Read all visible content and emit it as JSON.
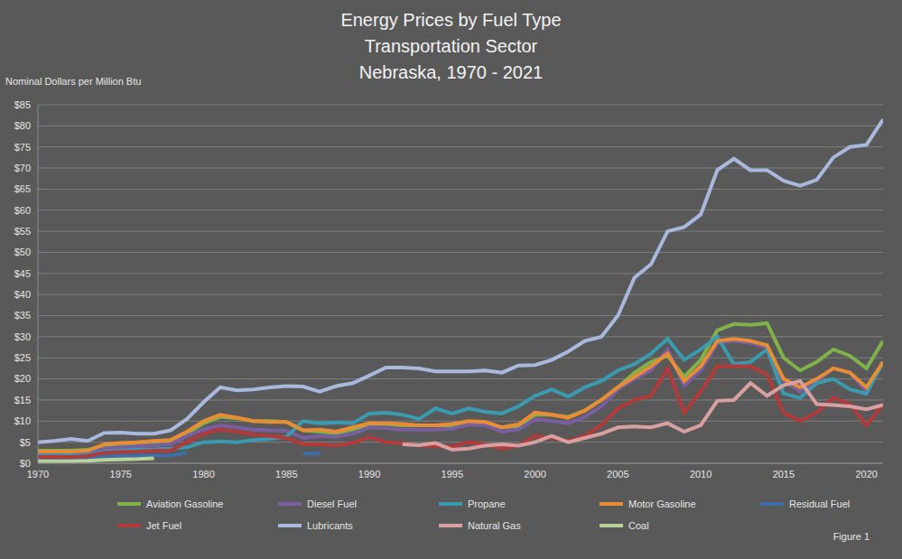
{
  "chart_data": {
    "type": "line",
    "title": [
      "Energy Prices by Fuel Type",
      "Transportation Sector",
      "Nebraska, 1970 - 2021"
    ],
    "y_label": "Nominal Dollars per Million Btu",
    "annotations": [
      "Figure 1"
    ],
    "grid": true,
    "legend": "bottom",
    "x": [
      1970,
      1971,
      1972,
      1973,
      1974,
      1975,
      1976,
      1977,
      1978,
      1979,
      1980,
      1981,
      1982,
      1983,
      1984,
      1985,
      1986,
      1987,
      1988,
      1989,
      1990,
      1991,
      1992,
      1993,
      1994,
      1995,
      1996,
      1997,
      1998,
      1999,
      2000,
      2001,
      2002,
      2003,
      2004,
      2005,
      2006,
      2007,
      2008,
      2009,
      2010,
      2011,
      2012,
      2013,
      2014,
      2015,
      2016,
      2017,
      2018,
      2019,
      2020,
      2021
    ],
    "xlim": [
      1970,
      2021
    ],
    "xticks": [
      1970,
      1975,
      1980,
      1985,
      1990,
      1995,
      2000,
      2005,
      2010,
      2015,
      2020
    ],
    "ylim": [
      0,
      85
    ],
    "yticks": [
      {
        "value": 0,
        "label": "$0"
      },
      {
        "value": 5,
        "label": "$5"
      },
      {
        "value": 10,
        "label": "$10"
      },
      {
        "value": 15,
        "label": "$15"
      },
      {
        "value": 20,
        "label": "$20"
      },
      {
        "value": 25,
        "label": "$25"
      },
      {
        "value": 30,
        "label": "$30"
      },
      {
        "value": 35,
        "label": "$35"
      },
      {
        "value": 40,
        "label": "$40"
      },
      {
        "value": 45,
        "label": "$45"
      },
      {
        "value": 50,
        "label": "$50"
      },
      {
        "value": 55,
        "label": "$55"
      },
      {
        "value": 60,
        "label": "$60"
      },
      {
        "value": 65,
        "label": "$65"
      },
      {
        "value": 70,
        "label": "$70"
      },
      {
        "value": 75,
        "label": "$75"
      },
      {
        "value": 80,
        "label": "$80"
      },
      {
        "value": 85,
        "label": "$85"
      }
    ],
    "series": [
      {
        "name": "Aviation Gasoline",
        "color": "#7fb34a",
        "values": [
          3,
          3,
          3,
          3.2,
          3.8,
          4,
          4.2,
          4.5,
          5,
          7,
          9.5,
          11,
          10.7,
          10,
          10,
          9.8,
          7.8,
          7.5,
          7.2,
          8,
          9.3,
          9.3,
          9,
          9,
          9,
          9,
          9.8,
          9.5,
          8.5,
          8.8,
          11.5,
          11.5,
          11,
          12.5,
          15,
          18,
          21.5,
          24,
          25.5,
          20.5,
          24.5,
          31.5,
          33,
          32.8,
          33.2,
          25,
          22,
          24,
          27,
          25.5,
          22.5,
          29
        ]
      },
      {
        "name": "Diesel Fuel",
        "color": "#7a5fa0",
        "values": [
          2,
          2,
          2,
          2.3,
          3.5,
          3.8,
          4,
          4.3,
          4.5,
          6.5,
          8,
          9,
          8.5,
          8,
          7.8,
          7.7,
          6,
          6.5,
          6.3,
          7,
          8.5,
          8.3,
          8,
          8,
          8,
          8.2,
          9.2,
          9,
          7.5,
          8,
          10.5,
          10,
          9.5,
          11,
          13.5,
          17.5,
          20,
          22,
          27,
          18.5,
          22,
          28.5,
          29,
          28.5,
          27.5,
          19.5,
          17,
          19.5,
          22.5,
          21.5,
          17,
          24
        ]
      },
      {
        "name": "Propane",
        "color": "#3a9bb0",
        "values": [
          1.8,
          1.8,
          1.9,
          2,
          2.8,
          3,
          3.2,
          3.3,
          3.5,
          3.8,
          5,
          5.2,
          5,
          5.5,
          5.8,
          6.3,
          10,
          9.5,
          9.7,
          9.5,
          11.8,
          12,
          11.5,
          10.5,
          13,
          11.8,
          13,
          12.2,
          11.8,
          13.5,
          16,
          17.5,
          15.8,
          18,
          19.5,
          22,
          23.5,
          26,
          29.5,
          24.5,
          27,
          30,
          23.5,
          24,
          27,
          16.5,
          15.5,
          19,
          20,
          17.5,
          16.5,
          24
        ]
      },
      {
        "name": "Motor Gasoline",
        "color": "#e98d35",
        "values": [
          2.8,
          2.8,
          2.8,
          3,
          4.5,
          4.8,
          5,
          5.3,
          5.5,
          7.5,
          10,
          11.5,
          10.8,
          10,
          9.8,
          9.8,
          7.8,
          8,
          7.5,
          8.5,
          9.5,
          9.5,
          9.3,
          9,
          9,
          9.3,
          10,
          9.8,
          8.5,
          9.2,
          12,
          11.5,
          10.8,
          12.5,
          15,
          18,
          20.5,
          23,
          26,
          19.5,
          23,
          29,
          29.5,
          29,
          28,
          20,
          18,
          20,
          22.5,
          21.5,
          18,
          24
        ]
      },
      {
        "name": "Residual Fuel",
        "color": "#3d6ea8",
        "values": [
          1.2,
          1.2,
          1.2,
          1.3,
          1.6,
          1.7,
          1.8,
          1.8,
          1.8,
          2.5,
          null,
          null,
          null,
          null,
          null,
          null,
          2.3,
          2.3,
          null,
          null,
          null,
          null,
          null,
          null,
          null,
          null,
          null,
          null,
          null,
          null,
          null,
          null,
          null,
          null,
          null,
          null,
          null,
          null,
          null,
          null,
          null,
          null,
          null,
          null,
          null,
          null,
          null,
          null,
          null,
          null,
          null,
          null
        ]
      },
      {
        "name": "Jet Fuel",
        "color": "#b33a3a",
        "values": [
          1.5,
          1.5,
          1.5,
          1.7,
          2.5,
          2.7,
          2.8,
          3,
          3,
          5,
          7,
          8,
          7.5,
          6.8,
          6.5,
          6,
          4.5,
          4.5,
          4.2,
          4.8,
          6.2,
          5,
          4.7,
          4.3,
          4,
          4,
          5,
          4.5,
          3.5,
          4.2,
          6.5,
          6,
          5.3,
          6.5,
          9,
          13,
          15,
          16,
          22.5,
          12,
          17,
          23,
          23,
          23,
          21,
          12,
          10,
          12,
          15.5,
          14,
          9,
          14
        ]
      },
      {
        "name": "Lubricants",
        "color": "#a9b8dc",
        "values": [
          5,
          5.3,
          5.8,
          5.3,
          7.2,
          7.3,
          7,
          7,
          7.8,
          10.5,
          14.5,
          18,
          17.3,
          17.5,
          18,
          18.3,
          18.2,
          17,
          18.3,
          19,
          20.8,
          22.7,
          22.7,
          22.5,
          21.8,
          21.8,
          21.8,
          22,
          21.5,
          23.2,
          23.3,
          24.5,
          26.5,
          29,
          30,
          35,
          44,
          47.2,
          55,
          56,
          59,
          69.5,
          72.2,
          69.5,
          69.5,
          67,
          65.8,
          67.2,
          72.5,
          75,
          75.5,
          81.5
        ]
      },
      {
        "name": "Natural Gas",
        "color": "#d8a0a0",
        "values": [
          null,
          null,
          null,
          null,
          null,
          null,
          null,
          null,
          null,
          null,
          null,
          null,
          null,
          null,
          null,
          null,
          null,
          null,
          null,
          null,
          null,
          null,
          4.5,
          4.3,
          4.8,
          3.2,
          3.5,
          4.2,
          4.5,
          4.2,
          5,
          6.5,
          5,
          6,
          7,
          8.5,
          8.7,
          8.5,
          9.5,
          7.5,
          9,
          14.8,
          15,
          19,
          16,
          18.5,
          19.5,
          14,
          13.8,
          13.5,
          12.8,
          13.8
        ]
      },
      {
        "name": "Coal",
        "color": "#b8d39a",
        "values": [
          0.5,
          0.5,
          0.5,
          0.6,
          0.8,
          0.9,
          1,
          1.2,
          null,
          null,
          null,
          null,
          null,
          null,
          null,
          null,
          null,
          null,
          null,
          null,
          null,
          null,
          null,
          null,
          null,
          null,
          null,
          null,
          null,
          null,
          null,
          null,
          null,
          null,
          null,
          null,
          null,
          null,
          null,
          null,
          null,
          null,
          null,
          null,
          null,
          null,
          null,
          null,
          null,
          null,
          null,
          null
        ]
      }
    ]
  }
}
